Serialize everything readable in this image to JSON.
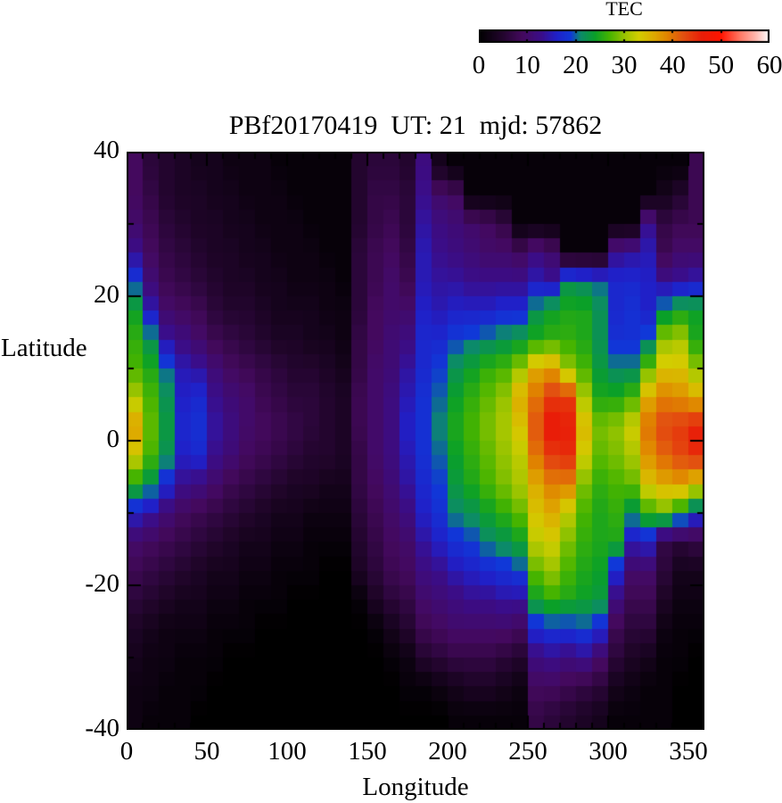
{
  "title": "PBf20170419  UT: 21  mjd: 57862",
  "colorbar": {
    "title": "TEC",
    "min": 0,
    "max": 60,
    "tick_values": [
      0,
      10,
      20,
      30,
      40,
      50,
      60
    ],
    "tick_labels": [
      "0",
      "10",
      "20",
      "30",
      "40",
      "50",
      "60"
    ],
    "minor_tick_values": [
      10,
      20,
      30,
      40,
      50
    ]
  },
  "axes": {
    "xlabel": "Longitude",
    "ylabel": "Latitude",
    "xlim": [
      0,
      360
    ],
    "ylim": [
      -40,
      40
    ],
    "x_tick_values": [
      0,
      50,
      100,
      150,
      200,
      250,
      300,
      350
    ],
    "x_tick_labels": [
      "0",
      "50",
      "100",
      "150",
      "200",
      "250",
      "300",
      "350"
    ],
    "x_minor_step": 10,
    "y_tick_values": [
      40,
      20,
      0,
      -20,
      -40
    ],
    "y_tick_labels": [
      "40",
      "20",
      "0",
      "-20",
      "-40"
    ],
    "y_minor_step": 10,
    "frame_color": "#000000"
  },
  "chart_data": {
    "type": "heatmap",
    "title": "PBf20170419  UT: 21  mjd: 57862",
    "dataset": "PBf20170419",
    "ut_hour": "21",
    "mjd": "57862",
    "value_label": "TEC",
    "value_range": [
      0,
      60
    ],
    "xlabel": "Longitude",
    "ylabel": "Latitude",
    "lon_start": 0,
    "lon_cell_width_deg": 10,
    "lat_centers": [
      38,
      34,
      30,
      26,
      22,
      18,
      14,
      10,
      6,
      2,
      -2,
      -6,
      -10,
      -14,
      -18,
      -22,
      -26,
      -30,
      -34,
      -38
    ],
    "colormap_stops": [
      [
        0,
        "#000000"
      ],
      [
        5,
        "#23052e"
      ],
      [
        9,
        "#44095e"
      ],
      [
        13,
        "#3a0d8a"
      ],
      [
        16,
        "#2020c8"
      ],
      [
        19,
        "#1038d8"
      ],
      [
        21,
        "#0c8a6a"
      ],
      [
        24,
        "#0aa028"
      ],
      [
        27,
        "#46b400"
      ],
      [
        30,
        "#96c300"
      ],
      [
        33,
        "#d2cd00"
      ],
      [
        36,
        "#ddab00"
      ],
      [
        39,
        "#e08200"
      ],
      [
        42,
        "#e25410"
      ],
      [
        46,
        "#e81e08"
      ],
      [
        50,
        "#ff1400"
      ],
      [
        54,
        "#ff7a66"
      ],
      [
        57,
        "#ffb4aa"
      ],
      [
        60,
        "#ffffff"
      ]
    ],
    "values": [
      [
        9,
        6,
        5,
        4,
        3,
        3,
        2,
        2,
        2,
        1,
        1,
        1,
        1,
        1,
        5,
        6,
        6,
        5,
        12,
        3,
        1,
        1,
        1,
        1,
        1,
        1,
        1,
        1,
        1,
        1,
        1,
        1,
        1,
        1,
        1,
        8
      ],
      [
        9,
        7,
        5,
        4,
        4,
        3,
        3,
        2,
        2,
        2,
        1,
        1,
        1,
        1,
        5,
        7,
        7,
        6,
        13,
        10,
        9,
        1,
        1,
        1,
        1,
        1,
        1,
        1,
        1,
        1,
        1,
        1,
        1,
        3,
        5,
        8
      ],
      [
        10,
        8,
        6,
        5,
        4,
        4,
        3,
        3,
        2,
        2,
        2,
        1,
        1,
        1,
        5,
        7,
        8,
        6,
        14,
        12,
        11,
        10,
        9,
        7,
        1,
        1,
        1,
        1,
        1,
        1,
        1,
        1,
        13,
        7,
        8,
        8
      ],
      [
        13,
        9,
        7,
        6,
        5,
        4,
        4,
        3,
        3,
        2,
        2,
        2,
        1,
        1,
        6,
        8,
        9,
        7,
        15,
        13,
        12,
        11,
        10,
        10,
        9,
        12,
        10,
        1,
        1,
        1,
        13,
        14,
        15,
        8,
        10,
        10
      ],
      [
        19,
        11,
        8,
        7,
        6,
        5,
        4,
        4,
        3,
        3,
        2,
        2,
        2,
        1,
        6,
        8,
        10,
        8,
        15,
        14,
        14,
        13,
        13,
        13,
        13,
        15,
        14,
        22,
        21,
        20,
        17,
        17,
        16,
        13,
        14,
        15
      ],
      [
        24,
        15,
        10,
        9,
        8,
        6,
        5,
        5,
        4,
        3,
        3,
        3,
        2,
        2,
        6,
        9,
        10,
        10,
        16,
        15,
        16,
        16,
        16,
        17,
        17,
        22,
        24,
        25,
        25,
        22,
        17,
        18,
        16,
        22,
        24,
        24
      ],
      [
        26,
        22,
        14,
        12,
        10,
        8,
        7,
        6,
        5,
        4,
        4,
        3,
        3,
        2,
        7,
        9,
        11,
        12,
        17,
        17,
        19,
        20,
        21,
        22,
        23,
        25,
        26,
        26,
        25,
        22,
        18,
        18,
        20,
        30,
        31,
        25
      ],
      [
        27,
        25,
        20,
        15,
        14,
        11,
        9,
        8,
        7,
        6,
        5,
        5,
        4,
        3,
        7,
        10,
        11,
        14,
        17,
        19,
        22,
        24,
        26,
        27,
        30,
        36,
        37,
        30,
        27,
        23,
        21,
        21,
        28,
        34,
        34,
        30
      ],
      [
        31,
        27,
        22,
        16,
        17,
        13,
        11,
        10,
        8,
        7,
        6,
        6,
        5,
        4,
        8,
        10,
        12,
        15,
        18,
        20,
        24,
        26,
        28,
        30,
        36,
        40,
        44,
        44,
        31,
        25,
        25,
        27,
        36,
        39,
        38,
        36
      ],
      [
        37,
        28,
        23,
        17,
        18,
        14,
        12,
        10,
        9,
        8,
        7,
        6,
        5,
        4,
        8,
        10,
        12,
        16,
        18,
        21,
        25,
        27,
        29,
        31,
        34,
        42,
        47,
        46,
        35,
        29,
        30,
        33,
        40,
        43,
        44,
        46
      ],
      [
        33,
        27,
        22,
        16,
        17,
        13,
        11,
        9,
        8,
        7,
        6,
        5,
        5,
        4,
        7,
        10,
        12,
        15,
        18,
        20,
        24,
        26,
        28,
        30,
        32,
        40,
        44,
        45,
        33,
        28,
        29,
        31,
        38,
        41,
        43,
        45
      ],
      [
        25,
        22,
        17,
        13,
        12,
        10,
        8,
        7,
        6,
        5,
        4,
        4,
        3,
        3,
        7,
        9,
        11,
        14,
        17,
        19,
        23,
        25,
        27,
        29,
        31,
        36,
        39,
        39,
        29,
        26,
        27,
        28,
        34,
        36,
        37,
        34
      ],
      [
        16,
        14,
        11,
        9,
        8,
        7,
        6,
        5,
        4,
        3,
        3,
        2,
        2,
        2,
        6,
        8,
        10,
        12,
        16,
        18,
        21,
        22,
        24,
        26,
        28,
        34,
        36,
        32,
        27,
        25,
        26,
        22,
        26,
        28,
        24,
        18
      ],
      [
        10,
        9,
        8,
        7,
        6,
        5,
        4,
        3,
        3,
        2,
        2,
        1,
        1,
        1,
        5,
        7,
        9,
        10,
        14,
        16,
        18,
        19,
        21,
        22,
        24,
        32,
        33,
        29,
        26,
        25,
        25,
        15,
        16,
        7,
        6,
        7
      ],
      [
        8,
        7,
        6,
        5,
        4,
        3,
        3,
        2,
        2,
        1,
        1,
        1,
        0,
        0,
        4,
        6,
        8,
        9,
        12,
        13,
        15,
        16,
        17,
        18,
        19,
        28,
        30,
        27,
        25,
        24,
        17,
        10,
        10,
        6,
        3,
        3
      ],
      [
        6,
        5,
        4,
        3,
        3,
        2,
        2,
        1,
        1,
        1,
        0,
        0,
        0,
        0,
        1,
        4,
        6,
        7,
        10,
        11,
        12,
        13,
        13,
        14,
        14,
        24,
        26,
        25,
        24,
        23,
        12,
        8,
        8,
        4,
        2,
        2
      ],
      [
        4,
        3,
        2,
        2,
        2,
        1,
        1,
        1,
        0,
        0,
        0,
        0,
        0,
        0,
        0,
        1,
        3,
        5,
        8,
        9,
        10,
        10,
        10,
        10,
        9,
        17,
        18,
        18,
        19,
        17,
        8,
        6,
        6,
        2,
        1,
        1
      ],
      [
        3,
        2,
        2,
        1,
        1,
        1,
        0,
        0,
        0,
        0,
        0,
        0,
        0,
        0,
        0,
        0,
        1,
        2,
        5,
        6,
        7,
        7,
        7,
        6,
        5,
        12,
        13,
        12,
        13,
        10,
        6,
        4,
        3,
        1,
        1,
        0
      ],
      [
        2,
        2,
        1,
        1,
        1,
        0,
        0,
        0,
        0,
        0,
        0,
        0,
        0,
        0,
        0,
        0,
        0,
        1,
        1,
        2,
        3,
        4,
        4,
        3,
        2,
        9,
        9,
        8,
        7,
        6,
        3,
        2,
        1,
        1,
        0,
        0
      ],
      [
        2,
        1,
        1,
        1,
        0,
        0,
        0,
        0,
        0,
        0,
        0,
        0,
        0,
        0,
        0,
        0,
        0,
        0,
        0,
        0,
        1,
        1,
        1,
        1,
        1,
        7,
        6,
        5,
        4,
        3,
        1,
        1,
        1,
        1,
        0,
        0
      ]
    ]
  }
}
